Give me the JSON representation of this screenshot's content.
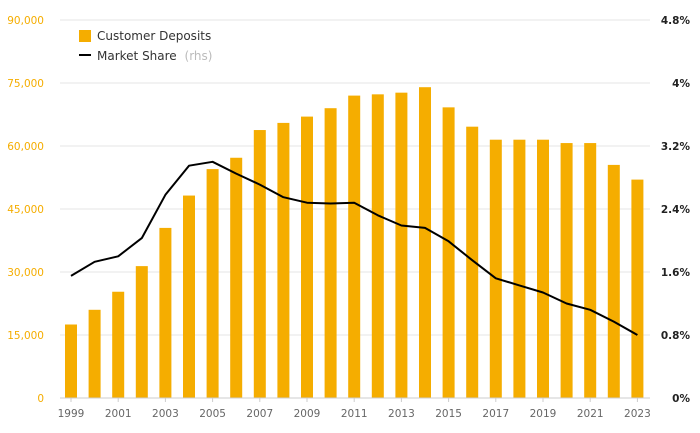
{
  "chart_data": {
    "type": "bar+line",
    "categories": [
      "1999",
      "2000",
      "2001",
      "2002",
      "2003",
      "2004",
      "2005",
      "2006",
      "2007",
      "2008",
      "2009",
      "2010",
      "2011",
      "2012",
      "2013",
      "2014",
      "2015",
      "2016",
      "2017",
      "2018",
      "2019",
      "2020",
      "2021",
      "2022",
      "2023"
    ],
    "x_tick_labels": [
      "1999",
      "2001",
      "2003",
      "2005",
      "2007",
      "2009",
      "2011",
      "2013",
      "2015",
      "2017",
      "2019",
      "2021",
      "2023"
    ],
    "series": [
      {
        "name": "Customer Deposits",
        "type": "bar",
        "axis": "left",
        "color": "#F5AD00",
        "values": [
          17500,
          21000,
          25300,
          31400,
          40500,
          48200,
          54500,
          57200,
          63800,
          65500,
          67000,
          69000,
          72000,
          72300,
          72700,
          74000,
          69200,
          64600,
          61500,
          61500,
          61500,
          60700,
          60700,
          55500,
          52000
        ]
      },
      {
        "name": "Market Share",
        "suffix": "(rhs)",
        "type": "line",
        "axis": "right",
        "color": "#000000",
        "values": [
          1.55,
          1.73,
          1.8,
          2.03,
          2.58,
          2.95,
          3.0,
          2.85,
          2.71,
          2.55,
          2.48,
          2.47,
          2.48,
          2.32,
          2.19,
          2.16,
          1.99,
          1.75,
          1.52,
          1.43,
          1.34,
          1.2,
          1.12,
          0.97,
          0.8
        ]
      }
    ],
    "y_left": {
      "min": 0,
      "max": 90000,
      "ticks": [
        0,
        15000,
        30000,
        45000,
        60000,
        75000,
        90000
      ],
      "tick_labels": [
        "0",
        "15,000",
        "30,000",
        "45,000",
        "60,000",
        "75,000",
        "90,000"
      ],
      "color": "#F5AD00"
    },
    "y_right": {
      "min": 0,
      "max": 4.8,
      "ticks": [
        0,
        0.8,
        1.6,
        2.4,
        3.2,
        4.0,
        4.8
      ],
      "tick_labels": [
        "0%",
        "0.8%",
        "1.6%",
        "2.4%",
        "3.2%",
        "4%",
        "4.8%"
      ]
    },
    "grid": true,
    "legend_position": "top-left",
    "title": "",
    "xlabel": "",
    "ylabel": ""
  }
}
